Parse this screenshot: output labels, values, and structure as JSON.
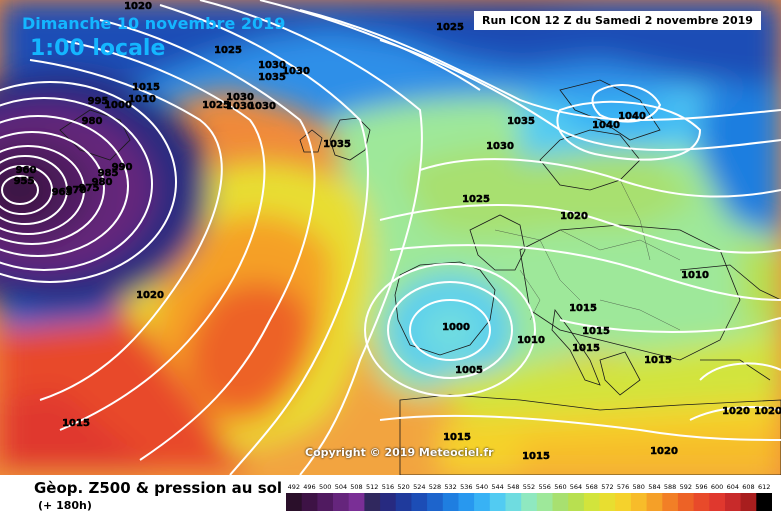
{
  "header": {
    "date": "Dimanche 10 novembre 2019",
    "time": "1:00 locale",
    "run": "Run ICON 12 Z du Samedi 2 novembre 2019"
  },
  "copyright": "Copyright © 2019 Meteociel.fr",
  "footer": {
    "title": "Gèop. Z500 & pression au sol",
    "subtitle": "(+ 180h)"
  },
  "legend": {
    "values": [
      "492",
      "496",
      "500",
      "504",
      "508",
      "512",
      "516",
      "520",
      "524",
      "528",
      "532",
      "536",
      "540",
      "544",
      "548",
      "552",
      "556",
      "560",
      "564",
      "568",
      "572",
      "576",
      "580",
      "584",
      "588",
      "592",
      "596",
      "600",
      "604",
      "608",
      "612"
    ],
    "colors": [
      "#2a0f2a",
      "#3d1245",
      "#501a60",
      "#65257c",
      "#7a2f96",
      "#30285e",
      "#272a80",
      "#1f3a9c",
      "#1c4db6",
      "#1d64cc",
      "#1f7ee0",
      "#2898ef",
      "#38b2f5",
      "#52cbf2",
      "#6fdce0",
      "#8fe8c0",
      "#9ee89a",
      "#a8e070",
      "#b8e050",
      "#d2e43c",
      "#e8de30",
      "#f5d22c",
      "#f7bc2a",
      "#f5a028",
      "#f27f26",
      "#ed6226",
      "#e84a2a",
      "#e0382e",
      "#c82a2a",
      "#a81e1e",
      "#000000"
    ]
  },
  "pressure_labels": [
    {
      "id": "p1020-top",
      "text": "1020"
    },
    {
      "id": "p1025-nw",
      "text": "1025"
    },
    {
      "id": "p1025-top",
      "text": "1025"
    },
    {
      "id": "p1030-a",
      "text": "1030"
    },
    {
      "id": "p1035-a",
      "text": "1035"
    },
    {
      "id": "p1030-b",
      "text": "1030"
    },
    {
      "id": "p1015-nw",
      "text": "1015"
    },
    {
      "id": "p995",
      "text": "995"
    },
    {
      "id": "p1000-nw",
      "text": "1000"
    },
    {
      "id": "p1010-nw",
      "text": "1010"
    },
    {
      "id": "p1025-c",
      "text": "1025"
    },
    {
      "id": "p1030-c",
      "text": "1030"
    },
    {
      "id": "p1030-d",
      "text": "1030"
    },
    {
      "id": "p1030-e",
      "text": "1030"
    },
    {
      "id": "p980",
      "text": "980"
    },
    {
      "id": "p990",
      "text": "990"
    },
    {
      "id": "p985",
      "text": "985"
    },
    {
      "id": "p980b",
      "text": "980"
    },
    {
      "id": "p975",
      "text": "975"
    },
    {
      "id": "p970",
      "text": "970"
    },
    {
      "id": "p965",
      "text": "965"
    },
    {
      "id": "p960",
      "text": "960"
    },
    {
      "id": "p955",
      "text": "955"
    },
    {
      "id": "p1035-uk",
      "text": "1035"
    },
    {
      "id": "p1035-ne",
      "text": "1035"
    },
    {
      "id": "p1030-ne",
      "text": "1030"
    },
    {
      "id": "p1040-a",
      "text": "1040"
    },
    {
      "id": "p1040-b",
      "text": "1040"
    },
    {
      "id": "p1025-fr",
      "text": "1025"
    },
    {
      "id": "p1020-de",
      "text": "1020"
    },
    {
      "id": "p1010-ru",
      "text": "1010"
    },
    {
      "id": "p1020-atl",
      "text": "1020"
    },
    {
      "id": "p1015-it",
      "text": "1015"
    },
    {
      "id": "p1015-bk",
      "text": "1015"
    },
    {
      "id": "p1015-gr",
      "text": "1015"
    },
    {
      "id": "p1015-tr",
      "text": "1015"
    },
    {
      "id": "p1010-med",
      "text": "1010"
    },
    {
      "id": "p1000-ib",
      "text": "1000"
    },
    {
      "id": "p1005-ib",
      "text": "1005"
    },
    {
      "id": "p1015-sw",
      "text": "1015"
    },
    {
      "id": "p1015-afr",
      "text": "1015"
    },
    {
      "id": "p1015-s",
      "text": "1015"
    },
    {
      "id": "p1020-se1",
      "text": "1020"
    },
    {
      "id": "p1020-se2",
      "text": "1020"
    },
    {
      "id": "p1020-se3",
      "text": "1020"
    }
  ]
}
